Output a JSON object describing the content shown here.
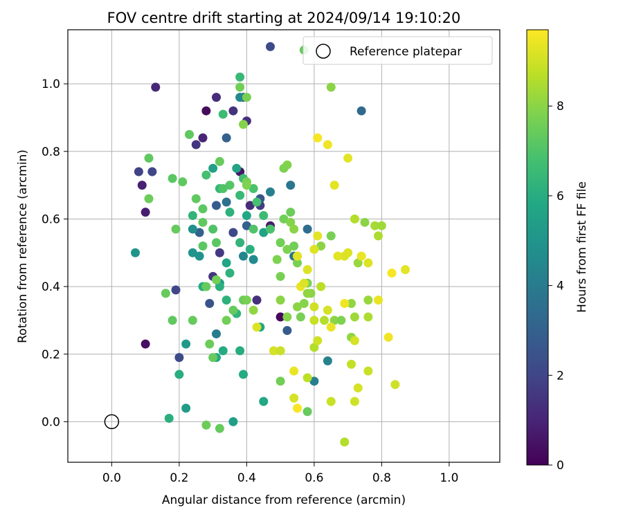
{
  "chart_data": {
    "type": "scatter",
    "title": "FOV centre drift starting at 2024/09/14 19:10:20",
    "xlabel": "Angular distance from reference (arcmin)",
    "ylabel": "Rotation from reference (arcmin)",
    "xlim": [
      -0.13,
      1.15
    ],
    "ylim": [
      -0.12,
      1.16
    ],
    "xticks": [
      0.0,
      0.2,
      0.4,
      0.6,
      0.8,
      1.0
    ],
    "yticks": [
      0.0,
      0.2,
      0.4,
      0.6,
      0.8,
      1.0
    ],
    "tick_format": "0.0",
    "grid": true,
    "legend": {
      "placement": "top-right",
      "entries": [
        "Reference platepar"
      ]
    },
    "reference": {
      "x": 0.0,
      "y": 0.0,
      "label": "Reference platepar"
    },
    "colorbar": {
      "label": "Hours from first FF file",
      "min": 0,
      "max": 9.7,
      "ticks": [
        0,
        2,
        4,
        6,
        8
      ],
      "colormap": [
        "#440154",
        "#482475",
        "#414487",
        "#355f8d",
        "#2a788e",
        "#21918c",
        "#22a884",
        "#44bf70",
        "#7ad151",
        "#bddf26",
        "#fde725"
      ]
    },
    "points_columns": [
      "x",
      "y",
      "hours"
    ],
    "points": [
      [
        0.28,
        0.92,
        0.3
      ],
      [
        0.5,
        0.31,
        0.2
      ],
      [
        0.1,
        0.23,
        0.4
      ],
      [
        0.38,
        0.74,
        0.6
      ],
      [
        0.47,
        0.58,
        0.8
      ],
      [
        0.13,
        0.99,
        1.1
      ],
      [
        0.31,
        0.96,
        1.2
      ],
      [
        0.4,
        0.89,
        1.3
      ],
      [
        0.27,
        0.84,
        1.0
      ],
      [
        0.09,
        0.7,
        0.9
      ],
      [
        0.1,
        0.62,
        0.8
      ],
      [
        0.36,
        0.92,
        1.4
      ],
      [
        0.41,
        0.64,
        1.2
      ],
      [
        0.44,
        0.64,
        1.7
      ],
      [
        0.3,
        0.43,
        1.5
      ],
      [
        0.43,
        0.36,
        1.3
      ],
      [
        0.32,
        0.5,
        1.6
      ],
      [
        0.25,
        0.82,
        1.5
      ],
      [
        0.08,
        0.74,
        1.9
      ],
      [
        0.12,
        0.74,
        2.0
      ],
      [
        0.47,
        1.11,
        2.2
      ],
      [
        0.39,
        0.96,
        2.5
      ],
      [
        0.36,
        0.56,
        2.1
      ],
      [
        0.29,
        0.35,
        2.5
      ],
      [
        0.19,
        0.39,
        2.0
      ],
      [
        0.2,
        0.19,
        2.2
      ],
      [
        0.52,
        0.27,
        2.8
      ],
      [
        0.44,
        0.66,
        2.6
      ],
      [
        0.4,
        0.58,
        3.0
      ],
      [
        0.31,
        0.64,
        2.8
      ],
      [
        0.34,
        0.84,
        3.0
      ],
      [
        0.26,
        0.56,
        3.0
      ],
      [
        0.74,
        0.92,
        3.3
      ],
      [
        0.58,
        0.57,
        3.5
      ],
      [
        0.53,
        0.7,
        3.8
      ],
      [
        0.34,
        0.65,
        3.6
      ],
      [
        0.54,
        0.49,
        3.8
      ],
      [
        0.47,
        0.68,
        4.2
      ],
      [
        0.38,
        0.96,
        4.5
      ],
      [
        0.31,
        0.26,
        4.0
      ],
      [
        0.6,
        0.12,
        4.1
      ],
      [
        0.64,
        0.18,
        4.3
      ],
      [
        0.39,
        0.49,
        4.4
      ],
      [
        0.42,
        0.48,
        4.6
      ],
      [
        0.24,
        0.57,
        4.8
      ],
      [
        0.26,
        0.49,
        4.9
      ],
      [
        0.24,
        0.5,
        5.0
      ],
      [
        0.32,
        0.41,
        5.2
      ],
      [
        0.07,
        0.5,
        5.0
      ],
      [
        0.22,
        0.04,
        5.3
      ],
      [
        0.36,
        0.0,
        5.4
      ],
      [
        0.22,
        0.23,
        5.2
      ],
      [
        0.3,
        0.75,
        5.5
      ],
      [
        0.37,
        0.75,
        5.6
      ],
      [
        0.45,
        0.56,
        5.6
      ],
      [
        0.34,
        0.47,
        5.7
      ],
      [
        0.4,
        0.61,
        5.8
      ],
      [
        0.31,
        0.19,
        5.8
      ],
      [
        0.33,
        0.21,
        5.9
      ],
      [
        0.38,
        0.21,
        6.0
      ],
      [
        0.44,
        0.28,
        5.7
      ],
      [
        0.45,
        0.06,
        5.8
      ],
      [
        0.39,
        0.14,
        5.9
      ],
      [
        0.2,
        0.14,
        6.0
      ],
      [
        0.17,
        0.01,
        6.1
      ],
      [
        0.27,
        0.4,
        6.0
      ],
      [
        0.32,
        0.4,
        6.1
      ],
      [
        0.35,
        0.44,
        6.2
      ],
      [
        0.37,
        0.32,
        6.3
      ],
      [
        0.34,
        0.36,
        6.2
      ],
      [
        0.41,
        0.51,
        6.1
      ],
      [
        0.38,
        0.53,
        6.3
      ],
      [
        0.35,
        0.62,
        6.2
      ],
      [
        0.32,
        0.69,
        6.4
      ],
      [
        0.24,
        0.61,
        6.3
      ],
      [
        0.38,
        1.02,
        6.5
      ],
      [
        0.33,
        0.91,
        6.6
      ],
      [
        0.38,
        0.67,
        6.5
      ],
      [
        0.39,
        0.72,
        6.7
      ],
      [
        0.45,
        0.61,
        6.6
      ],
      [
        0.43,
        0.65,
        6.8
      ],
      [
        0.47,
        0.57,
        6.9
      ],
      [
        0.42,
        0.57,
        7.0
      ],
      [
        0.3,
        0.57,
        7.0
      ],
      [
        0.42,
        0.69,
        6.9
      ],
      [
        0.35,
        0.7,
        7.1
      ],
      [
        0.27,
        0.63,
        7.2
      ],
      [
        0.27,
        0.52,
        7.2
      ],
      [
        0.31,
        0.53,
        7.2
      ],
      [
        0.28,
        0.73,
        6.8
      ],
      [
        0.33,
        0.69,
        7.0
      ],
      [
        0.32,
        0.77,
        7.4
      ],
      [
        0.23,
        0.85,
        7.3
      ],
      [
        0.11,
        0.78,
        7.3
      ],
      [
        0.11,
        0.66,
        7.5
      ],
      [
        0.18,
        0.72,
        7.2
      ],
      [
        0.21,
        0.71,
        7.3
      ],
      [
        0.19,
        0.57,
        7.4
      ],
      [
        0.25,
        0.66,
        7.3
      ],
      [
        0.27,
        0.59,
        7.3
      ],
      [
        0.16,
        0.38,
        7.4
      ],
      [
        0.18,
        0.3,
        7.3
      ],
      [
        0.24,
        0.3,
        7.4
      ],
      [
        0.28,
        0.4,
        7.4
      ],
      [
        0.29,
        0.23,
        7.5
      ],
      [
        0.3,
        0.19,
        7.4
      ],
      [
        0.31,
        0.42,
        7.6
      ],
      [
        0.34,
        0.3,
        7.6
      ],
      [
        0.28,
        -0.01,
        7.5
      ],
      [
        0.32,
        -0.02,
        7.4
      ],
      [
        0.36,
        0.33,
        7.4
      ],
      [
        0.39,
        0.36,
        7.5
      ],
      [
        0.4,
        0.36,
        7.7
      ],
      [
        0.4,
        0.96,
        7.7
      ],
      [
        0.38,
        0.99,
        7.6
      ],
      [
        0.39,
        0.88,
        7.9
      ],
      [
        0.4,
        0.71,
        7.7
      ],
      [
        0.4,
        0.7,
        7.8
      ],
      [
        0.53,
        0.62,
        7.5
      ],
      [
        0.51,
        0.6,
        7.6
      ],
      [
        0.5,
        0.53,
        7.6
      ],
      [
        0.52,
        0.51,
        7.8
      ],
      [
        0.54,
        0.52,
        7.6
      ],
      [
        0.55,
        0.47,
        7.7
      ],
      [
        0.49,
        0.48,
        7.8
      ],
      [
        0.5,
        0.43,
        7.7
      ],
      [
        0.55,
        0.49,
        7.8
      ],
      [
        0.58,
        0.41,
        7.8
      ],
      [
        0.59,
        0.38,
        8.0
      ],
      [
        0.57,
        0.35,
        7.9
      ],
      [
        0.5,
        0.36,
        8.0
      ],
      [
        0.52,
        0.31,
        7.9
      ],
      [
        0.56,
        0.31,
        7.7
      ],
      [
        0.5,
        0.12,
        7.6
      ],
      [
        0.58,
        0.03,
        7.4
      ],
      [
        0.53,
        0.59,
        7.9
      ],
      [
        0.54,
        0.57,
        8.0
      ],
      [
        0.52,
        0.76,
        7.9
      ],
      [
        0.51,
        0.75,
        7.8
      ],
      [
        0.42,
        0.33,
        8.1
      ],
      [
        0.55,
        0.34,
        8.0
      ],
      [
        0.58,
        0.38,
        8.1
      ],
      [
        0.65,
        0.55,
        7.7
      ],
      [
        0.62,
        0.52,
        8.0
      ],
      [
        0.66,
        0.3,
        8.0
      ],
      [
        0.68,
        0.3,
        7.8
      ],
      [
        0.71,
        0.35,
        8.1
      ],
      [
        0.72,
        0.31,
        8.3
      ],
      [
        0.71,
        0.25,
        8.1
      ],
      [
        0.73,
        0.47,
        8.2
      ],
      [
        0.75,
        0.59,
        8.0
      ],
      [
        0.78,
        0.58,
        8.4
      ],
      [
        0.8,
        0.58,
        8.3
      ],
      [
        0.79,
        0.55,
        8.5
      ],
      [
        0.76,
        0.36,
        8.2
      ],
      [
        0.76,
        0.31,
        8.5
      ],
      [
        0.57,
        1.1,
        7.4
      ],
      [
        0.65,
        0.99,
        8.0
      ],
      [
        0.72,
        0.6,
        8.6
      ],
      [
        0.63,
        0.3,
        8.6
      ],
      [
        0.58,
        0.13,
        8.7
      ],
      [
        0.65,
        0.06,
        8.9
      ],
      [
        0.69,
        -0.06,
        8.6
      ],
      [
        0.72,
        0.06,
        9.0
      ],
      [
        0.71,
        0.17,
        8.8
      ],
      [
        0.76,
        0.15,
        8.9
      ],
      [
        0.73,
        0.1,
        9.1
      ],
      [
        0.84,
        0.11,
        9.0
      ],
      [
        0.72,
        0.24,
        9.1
      ],
      [
        0.6,
        0.22,
        8.6
      ],
      [
        0.61,
        0.24,
        9.0
      ],
      [
        0.6,
        0.3,
        8.9
      ],
      [
        0.62,
        0.4,
        8.7
      ],
      [
        0.6,
        0.34,
        9.0
      ],
      [
        0.58,
        0.45,
        9.2
      ],
      [
        0.56,
        0.4,
        9.4
      ],
      [
        0.55,
        0.49,
        9.3
      ],
      [
        0.6,
        0.51,
        9.2
      ],
      [
        0.61,
        0.55,
        9.3
      ],
      [
        0.64,
        0.33,
        9.1
      ],
      [
        0.65,
        0.28,
        9.4
      ],
      [
        0.67,
        0.49,
        9.3
      ],
      [
        0.69,
        0.49,
        9.2
      ],
      [
        0.7,
        0.5,
        9.2
      ],
      [
        0.74,
        0.49,
        9.4
      ],
      [
        0.7,
        0.78,
        9.3
      ],
      [
        0.64,
        0.82,
        9.5
      ],
      [
        0.61,
        0.84,
        9.6
      ],
      [
        0.66,
        0.7,
        9.3
      ],
      [
        0.48,
        0.21,
        9.1
      ],
      [
        0.5,
        0.21,
        8.9
      ],
      [
        0.43,
        0.28,
        9.2
      ],
      [
        0.54,
        0.15,
        9.4
      ],
      [
        0.54,
        0.07,
        9.1
      ],
      [
        0.55,
        0.04,
        9.6
      ],
      [
        0.82,
        0.25,
        9.5
      ],
      [
        0.83,
        0.44,
        9.6
      ],
      [
        0.87,
        0.45,
        9.3
      ],
      [
        0.76,
        0.47,
        9.2
      ],
      [
        0.79,
        0.36,
        9.4
      ],
      [
        0.69,
        0.35,
        9.5
      ],
      [
        0.57,
        0.41,
        9.2
      ]
    ]
  }
}
